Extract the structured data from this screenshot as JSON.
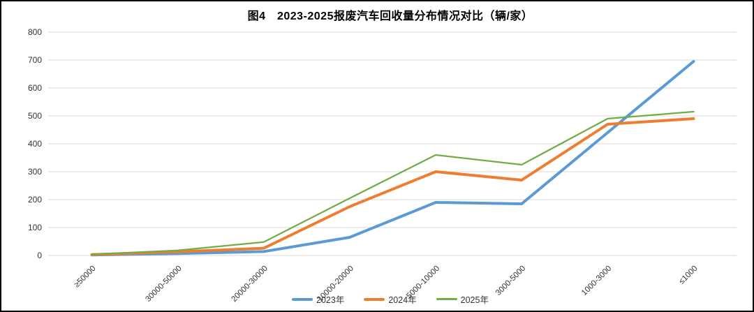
{
  "chart_data": {
    "type": "line",
    "title": "图4　2023-2025报废汽车回收量分布情况对比（辆/家）",
    "categories": [
      "≥50000",
      "30000-50000",
      "20000-30000",
      "10000-20000",
      "5000-10000",
      "3000-5000",
      "1000-3000",
      "≤1000"
    ],
    "series": [
      {
        "name": "2023年",
        "color": "#5B9BD5",
        "stroke_width": 4,
        "values": [
          2,
          7,
          14,
          65,
          190,
          185,
          440,
          695
        ]
      },
      {
        "name": "2024年",
        "color": "#ED7D31",
        "stroke_width": 4,
        "values": [
          3,
          13,
          26,
          175,
          300,
          270,
          470,
          490
        ]
      },
      {
        "name": "2025年",
        "color": "#70AD47",
        "stroke_width": 2.25,
        "values": [
          4,
          18,
          48,
          205,
          360,
          325,
          490,
          515
        ]
      }
    ],
    "xlabel": "",
    "ylabel": "",
    "ylim": [
      0,
      800
    ],
    "ytick_step": 100,
    "yticks": [
      "0",
      "100",
      "200",
      "300",
      "400",
      "500",
      "600",
      "700",
      "800"
    ],
    "grid": true,
    "gridline_color": "#D9D9D9",
    "axis_label_color": "#333333",
    "x_label_rotation": -45,
    "legend_position": "bottom"
  }
}
